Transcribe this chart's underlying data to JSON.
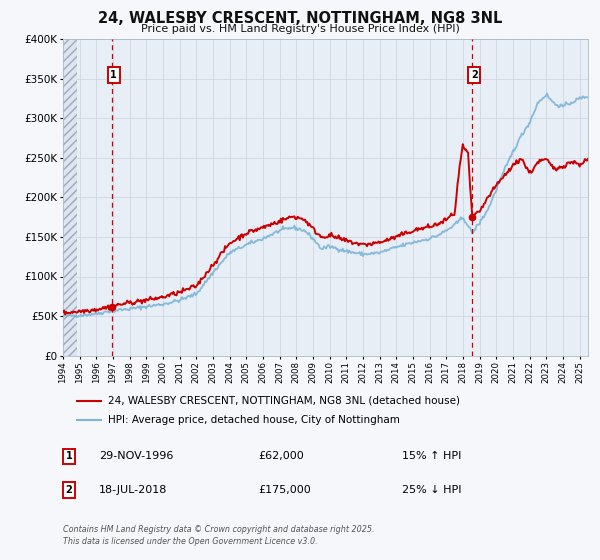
{
  "title": "24, WALESBY CRESCENT, NOTTINGHAM, NG8 3NL",
  "subtitle": "Price paid vs. HM Land Registry's House Price Index (HPI)",
  "legend_line1": "24, WALESBY CRESCENT, NOTTINGHAM, NG8 3NL (detached house)",
  "legend_line2": "HPI: Average price, detached house, City of Nottingham",
  "sale1_date": "29-NOV-1996",
  "sale1_price": 62000,
  "sale1_hpi": "15% ↑ HPI",
  "sale2_date": "18-JUL-2018",
  "sale2_price": 175000,
  "sale2_hpi": "25% ↓ HPI",
  "footer": "Contains HM Land Registry data © Crown copyright and database right 2025.\nThis data is licensed under the Open Government Licence v3.0.",
  "ylim": [
    0,
    400000
  ],
  "yticks": [
    0,
    50000,
    100000,
    150000,
    200000,
    250000,
    300000,
    350000,
    400000
  ],
  "ytick_labels": [
    "£0",
    "£50K",
    "£100K",
    "£150K",
    "£200K",
    "£250K",
    "£300K",
    "£350K",
    "£400K"
  ],
  "hpi_color": "#7ab5d8",
  "price_color": "#cc0000",
  "vline_color": "#cc0000",
  "bg_color": "#f5f7fa",
  "plot_bg_color": "#e8eef5",
  "grid_color": "#c8d4e0",
  "title_color": "#111111",
  "anno_box_color": "#cc0000",
  "sale1_year": 1996.92,
  "sale2_year": 2018.55,
  "xmin": 1994.0,
  "xmax": 2025.5,
  "hatch_end": 1994.83
}
